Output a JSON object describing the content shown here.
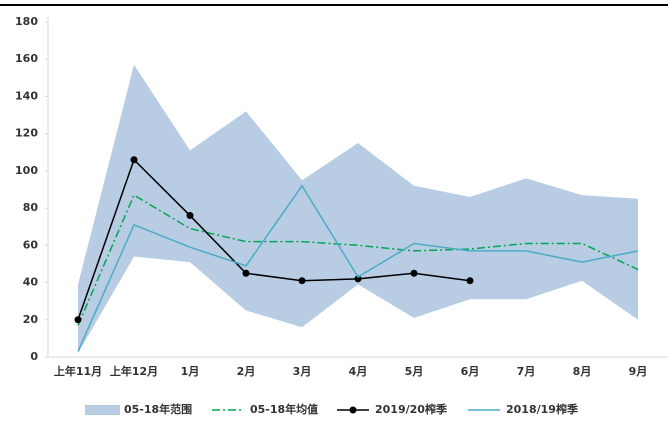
{
  "chart_data": {
    "type": "line",
    "categories": [
      "上年11月",
      "上年12月",
      "1月",
      "2月",
      "3月",
      "4月",
      "5月",
      "6月",
      "7月",
      "8月",
      "9月"
    ],
    "ylim": [
      0,
      180
    ],
    "yticks": [
      0,
      20,
      40,
      60,
      80,
      100,
      120,
      140,
      160,
      180
    ],
    "range": {
      "name": "05-18年范围",
      "color": "#b8cce4",
      "high": [
        39,
        157,
        111,
        132,
        95,
        115,
        92,
        86,
        96,
        87,
        85
      ],
      "low": [
        2,
        54,
        51,
        25,
        16,
        39,
        21,
        31,
        31,
        41,
        20
      ]
    },
    "series": [
      {
        "name": "05-18年均值",
        "color": "#00a651",
        "style": "dashdot",
        "values": [
          17,
          87,
          69,
          62,
          62,
          60,
          57,
          58,
          61,
          61,
          47
        ]
      },
      {
        "name": "2019/20榨季",
        "color": "#000000",
        "style": "marker",
        "values": [
          20,
          106,
          76,
          45,
          41,
          42,
          45,
          41,
          null,
          null,
          null
        ]
      },
      {
        "name": "2018/19榨季",
        "color": "#4bacc6",
        "style": "solid",
        "values": [
          3,
          71,
          59,
          49,
          92,
          43,
          61,
          57,
          57,
          51,
          57
        ]
      }
    ]
  }
}
